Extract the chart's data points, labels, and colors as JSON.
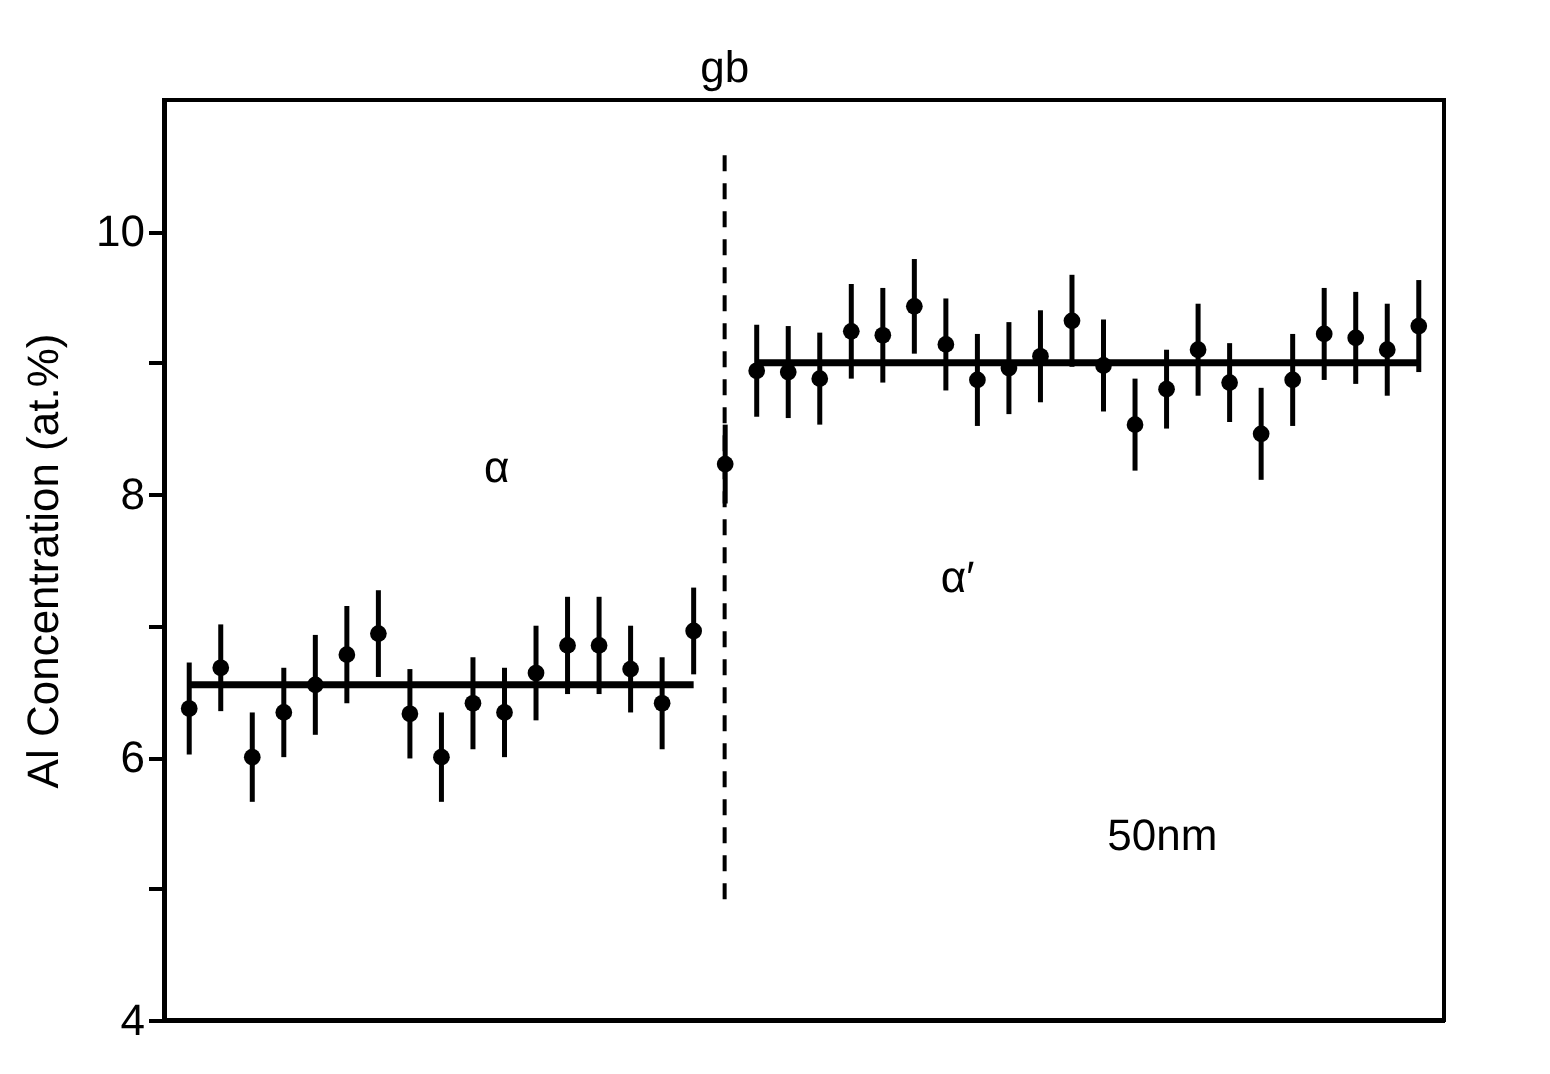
{
  "chart_data": {
    "type": "scatter",
    "ylabel": "Al Concentration (at.%)",
    "categories": [
      null,
      null,
      null,
      null,
      null,
      null,
      null,
      null,
      null,
      null,
      null,
      null,
      null,
      null,
      null,
      null,
      null,
      null,
      null,
      null,
      null,
      null,
      null,
      null,
      null,
      null,
      null,
      null,
      null,
      null,
      null,
      null,
      null,
      null,
      null,
      null,
      null,
      null,
      null,
      null
    ],
    "ylim": [
      4,
      11
    ],
    "yticks": [
      4,
      {
        "value": 5,
        "label": null
      },
      6,
      {
        "value": 7,
        "label": null
      },
      8,
      {
        "value": 9,
        "label": null
      },
      10
    ],
    "tick_labels": "y",
    "marker": "circle",
    "grid": false,
    "series": [
      {
        "type": "scatter",
        "color": "#000000",
        "values": [
          6.37,
          6.68,
          6.0,
          6.34,
          6.55,
          6.78,
          6.94,
          6.33,
          6.0,
          6.41,
          6.34,
          6.64,
          6.85,
          6.85,
          6.67,
          6.41,
          6.96,
          8.23,
          8.94,
          8.93,
          8.88,
          9.24,
          9.21,
          9.43,
          9.14,
          8.87,
          8.96,
          9.05,
          9.32,
          8.98,
          8.53,
          8.8,
          9.1,
          8.85,
          8.46,
          8.87,
          9.22,
          9.19,
          9.1,
          9.28
        ],
        "errors": [
          0.35,
          0.33,
          0.34,
          0.34,
          0.38,
          0.37,
          0.33,
          0.34,
          0.34,
          0.35,
          0.34,
          0.36,
          0.37,
          0.37,
          0.33,
          0.35,
          0.33,
          0.3,
          0.35,
          0.35,
          0.35,
          0.36,
          0.36,
          0.36,
          0.35,
          0.35,
          0.35,
          0.35,
          0.35,
          0.35,
          0.35,
          0.3,
          0.35,
          0.3,
          0.35,
          0.35,
          0.35,
          0.35,
          0.35,
          0.35
        ]
      },
      {
        "type": "line",
        "marker": "none",
        "color": "#000000",
        "values": [
          6.55,
          6.55,
          6.55,
          6.55,
          6.55,
          6.55,
          6.55,
          6.55,
          6.55,
          6.55,
          6.55,
          6.55,
          6.55,
          6.55,
          6.55,
          6.55,
          6.55,
          null,
          null,
          null,
          null,
          null,
          null,
          null,
          null,
          null,
          null,
          null,
          null,
          null,
          null,
          null,
          null,
          null,
          null,
          null,
          null,
          null,
          null,
          null
        ]
      },
      {
        "type": "line",
        "marker": "none",
        "color": "#000000",
        "values": [
          null,
          null,
          null,
          null,
          null,
          null,
          null,
          null,
          null,
          null,
          null,
          null,
          null,
          null,
          null,
          null,
          null,
          null,
          9.0,
          9.0,
          9.0,
          9.0,
          9.0,
          9.0,
          9.0,
          9.0,
          9.0,
          9.0,
          9.0,
          9.0,
          9.0,
          9.0,
          9.0,
          9.0,
          9.0,
          9.0,
          9.0,
          9.0,
          9.0,
          9.0
        ]
      }
    ],
    "annotations": [
      "gb",
      "α",
      "α′",
      "50nm"
    ]
  }
}
